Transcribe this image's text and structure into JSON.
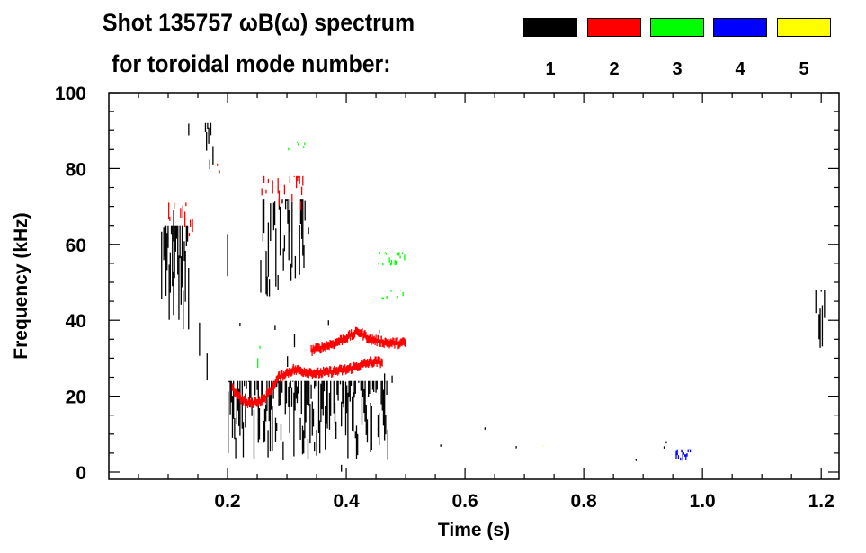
{
  "chart_data": {
    "type": "heatmap",
    "title": "Shot 135757 ωB(ω) spectrum",
    "subtitle": "for toroidal mode number:",
    "xlabel": "Time (s)",
    "ylabel": "Frequency (kHz)",
    "xlim": [
      0.0,
      1.23
    ],
    "ylim": [
      0,
      100
    ],
    "xticks": [
      0.2,
      0.4,
      0.6,
      0.8,
      1.0,
      1.2
    ],
    "xtick_labels": [
      "0.2",
      "0.4",
      "0.6",
      "0.8",
      "1.0",
      "1.2"
    ],
    "yticks": [
      0,
      20,
      40,
      60,
      80,
      100
    ],
    "ytick_labels": [
      "0",
      "20",
      "40",
      "60",
      "80",
      "100"
    ],
    "legend": [
      {
        "label": "1",
        "color": "#000000"
      },
      {
        "label": "2",
        "color": "#ff0000"
      },
      {
        "label": "3",
        "color": "#00ff00"
      },
      {
        "label": "4",
        "color": "#0000ff"
      },
      {
        "label": "5",
        "color": "#ffff00"
      }
    ],
    "legend_placement": "top-right",
    "regions": [
      {
        "mode": 1,
        "t": [
          0.088,
          0.135
        ],
        "f": [
          37,
          65
        ],
        "density": 0.9
      },
      {
        "mode": 1,
        "t": [
          0.09,
          0.2
        ],
        "f": [
          0,
          95
        ],
        "density": 0.12
      },
      {
        "mode": 1,
        "t": [
          0.16,
          0.178
        ],
        "f": [
          78,
          92
        ],
        "density": 0.6
      },
      {
        "mode": 1,
        "t": [
          0.2,
          0.47
        ],
        "f": [
          3,
          24
        ],
        "density": 0.85
      },
      {
        "mode": 1,
        "t": [
          0.2,
          0.48
        ],
        "f": [
          0,
          40
        ],
        "density": 0.08
      },
      {
        "mode": 1,
        "t": [
          0.255,
          0.33
        ],
        "f": [
          46,
          72
        ],
        "density": 0.7
      },
      {
        "mode": 1,
        "t": [
          0.27,
          0.36
        ],
        "f": [
          30,
          95
        ],
        "density": 0.06
      },
      {
        "mode": 1,
        "t": [
          1.19,
          1.205
        ],
        "f": [
          32,
          48
        ],
        "density": 0.8
      },
      {
        "mode": 1,
        "t": [
          0.5,
          1.23
        ],
        "f": [
          0,
          12
        ],
        "density": 0.01
      },
      {
        "mode": 2,
        "t": [
          0.255,
          0.33
        ],
        "f": [
          69,
          78
        ],
        "density": 0.6
      },
      {
        "mode": 2,
        "t": [
          0.1,
          0.14
        ],
        "f": [
          62,
          71
        ],
        "density": 0.5
      },
      {
        "mode": 2,
        "t": [
          0.16,
          0.21
        ],
        "f": [
          70,
          84
        ],
        "density": 0.1
      },
      {
        "mode": 3,
        "t": [
          0.45,
          0.5
        ],
        "f": [
          54,
          58
        ],
        "density": 0.4
      },
      {
        "mode": 3,
        "t": [
          0.46,
          0.5
        ],
        "f": [
          45,
          48
        ],
        "density": 0.4
      },
      {
        "mode": 3,
        "t": [
          0.3,
          0.33
        ],
        "f": [
          84,
          87
        ],
        "density": 0.3
      },
      {
        "mode": 3,
        "t": [
          0.25,
          0.26
        ],
        "f": [
          26,
          36
        ],
        "density": 0.3
      },
      {
        "mode": 4,
        "t": [
          0.953,
          0.98
        ],
        "f": [
          3,
          6
        ],
        "density": 0.9
      },
      {
        "mode": 5,
        "t": [
          0.73,
          0.735
        ],
        "f": [
          5,
          7
        ],
        "density": 0.9
      }
    ],
    "traces": [
      {
        "mode": 2,
        "points": [
          [
            0.207,
            22
          ],
          [
            0.23,
            18
          ],
          [
            0.26,
            19
          ],
          [
            0.285,
            25
          ],
          [
            0.31,
            27
          ],
          [
            0.35,
            26
          ],
          [
            0.4,
            27
          ],
          [
            0.44,
            29
          ],
          [
            0.46,
            29
          ]
        ]
      },
      {
        "mode": 2,
        "points": [
          [
            0.34,
            32
          ],
          [
            0.38,
            34
          ],
          [
            0.42,
            37
          ],
          [
            0.44,
            35
          ],
          [
            0.47,
            34
          ],
          [
            0.5,
            34
          ]
        ]
      }
    ]
  }
}
